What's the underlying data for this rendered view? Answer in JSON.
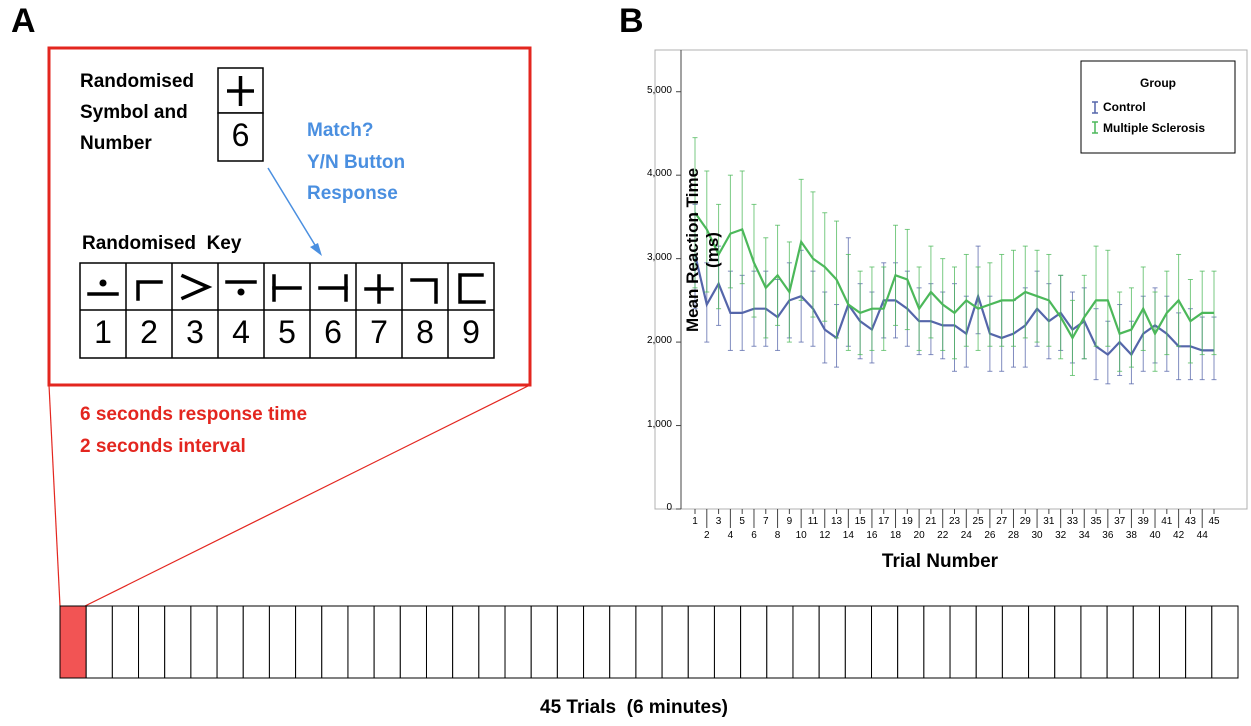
{
  "panel_a": {
    "letter": "A",
    "stimulus_label": [
      "Randomised",
      "Symbol and",
      "Number"
    ],
    "stimulus_number": "6",
    "match_text": [
      "Match?",
      "Y/N Button",
      "Response"
    ],
    "key_label": "Randomised  Key",
    "key_numbers": [
      "1",
      "2",
      "3",
      "4",
      "5",
      "6",
      "7",
      "8",
      "9"
    ],
    "timing": [
      "6 seconds response time",
      "2 seconds interval"
    ],
    "trials_label": "45 Trials  (6 minutes)",
    "trial_count": 45,
    "active_trial": 1,
    "colors": {
      "frame": "#e3261f",
      "active_trial": "#f25454",
      "match_text": "#4a8fe0",
      "timing_text": "#e3261f"
    }
  },
  "panel_b": {
    "letter": "B"
  },
  "chart_data": {
    "type": "line",
    "title": "",
    "xlabel": "Trial Number",
    "ylabel": "Mean Reaction Time (ms)",
    "ylim": [
      0,
      5500
    ],
    "yticks": [
      0,
      1000,
      2000,
      3000,
      4000,
      5000
    ],
    "ytick_labels": [
      "0",
      "1,000",
      "2,000",
      "3,000",
      "4,000",
      "5,000"
    ],
    "x": [
      1,
      2,
      3,
      4,
      5,
      6,
      7,
      8,
      9,
      10,
      11,
      12,
      13,
      14,
      15,
      16,
      17,
      18,
      19,
      20,
      21,
      22,
      23,
      24,
      25,
      26,
      27,
      28,
      29,
      30,
      31,
      32,
      33,
      34,
      35,
      36,
      37,
      38,
      39,
      40,
      41,
      42,
      43,
      44,
      45
    ],
    "legend": {
      "title": "Group",
      "position": "top-right"
    },
    "grid": false,
    "error_bars": true,
    "series": [
      {
        "name": "Control",
        "color": "#5566aa",
        "values": [
          3050,
          2450,
          2700,
          2350,
          2350,
          2400,
          2400,
          2300,
          2500,
          2550,
          2400,
          2150,
          2050,
          2450,
          2250,
          2150,
          2500,
          2500,
          2400,
          2250,
          2250,
          2200,
          2200,
          2100,
          2550,
          2100,
          2050,
          2100,
          2200,
          2400,
          2250,
          2350,
          2150,
          2250,
          1950,
          1850,
          2000,
          1850,
          2100,
          2200,
          2100,
          1950,
          1950,
          1900,
          1900
        ],
        "err_low": [
          2400,
          2000,
          2200,
          1900,
          1900,
          1950,
          1950,
          1900,
          2050,
          2000,
          1950,
          1750,
          1700,
          1950,
          1800,
          1750,
          2050,
          2050,
          1950,
          1850,
          1850,
          1800,
          1650,
          1700,
          2100,
          1650,
          1650,
          1700,
          1700,
          1950,
          1800,
          1900,
          1750,
          1800,
          1550,
          1500,
          1600,
          1500,
          1650,
          1750,
          1650,
          1550,
          1550,
          1550,
          1550
        ],
        "err_high": [
          3650,
          2950,
          3150,
          2850,
          2800,
          2850,
          2850,
          2750,
          2950,
          3100,
          2850,
          2600,
          2450,
          3250,
          2700,
          2600,
          2950,
          2950,
          2850,
          2650,
          2700,
          2600,
          2700,
          2550,
          3150,
          2550,
          2500,
          2500,
          2650,
          2850,
          2700,
          2800,
          2600,
          2650,
          2400,
          2250,
          2450,
          2250,
          2550,
          2650,
          2550,
          2350,
          2400,
          2300,
          2300
        ]
      },
      {
        "name": "Multiple Sclerosis",
        "color": "#4cb85a",
        "values": [
          3550,
          3350,
          3050,
          3300,
          3350,
          2950,
          2650,
          2800,
          2600,
          3200,
          3000,
          2900,
          2750,
          2450,
          2350,
          2400,
          2400,
          2800,
          2750,
          2400,
          2600,
          2450,
          2350,
          2500,
          2400,
          2450,
          2500,
          2500,
          2600,
          2550,
          2500,
          2300,
          2050,
          2300,
          2500,
          2500,
          2100,
          2150,
          2400,
          2100,
          2350,
          2500,
          2250,
          2350,
          2350
        ],
        "err_low": [
          2650,
          2600,
          2400,
          2650,
          2700,
          2300,
          2050,
          2200,
          2000,
          2500,
          2300,
          2250,
          2050,
          1900,
          1850,
          1900,
          1900,
          2200,
          2150,
          1900,
          2050,
          1900,
          1800,
          1950,
          1900,
          1950,
          1950,
          1950,
          2050,
          2000,
          1950,
          1800,
          1600,
          1800,
          1950,
          1950,
          1650,
          1700,
          1900,
          1650,
          1850,
          1950,
          1750,
          1850,
          1850
        ],
        "err_high": [
          4450,
          4050,
          3650,
          4000,
          4050,
          3650,
          3250,
          3400,
          3200,
          3950,
          3800,
          3550,
          3450,
          3050,
          2850,
          2900,
          2900,
          3400,
          3350,
          2900,
          3150,
          3000,
          2900,
          3050,
          2900,
          2950,
          3050,
          3100,
          3150,
          3100,
          3050,
          2800,
          2500,
          2800,
          3150,
          3100,
          2600,
          2650,
          2900,
          2600,
          2850,
          3050,
          2750,
          2850,
          2850
        ]
      }
    ]
  }
}
